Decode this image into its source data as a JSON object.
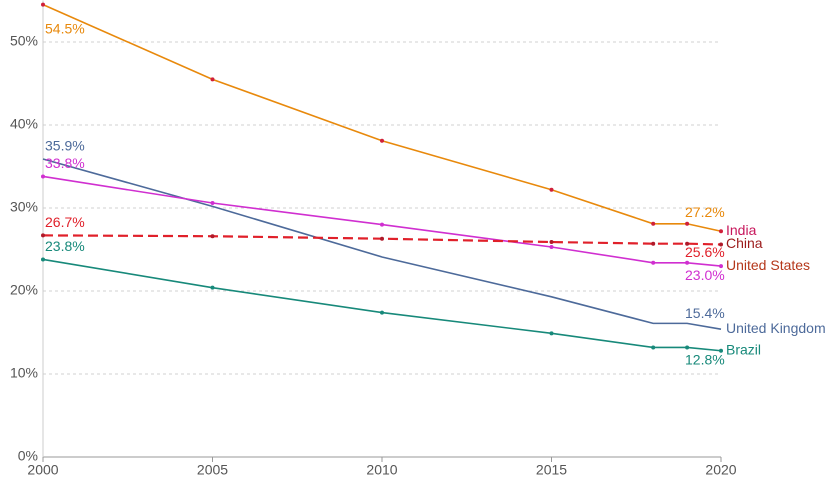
{
  "chart_data": {
    "type": "line",
    "x": [
      2000,
      2005,
      2010,
      2015,
      2018,
      2019,
      2020
    ],
    "xlim": [
      2000,
      2020
    ],
    "xticks": [
      2000,
      2005,
      2010,
      2015,
      2020
    ],
    "ylim": [
      0,
      55
    ],
    "yticks": [
      {
        "value": 0,
        "label": "0%"
      },
      {
        "value": 10,
        "label": "10%"
      },
      {
        "value": 20,
        "label": "20%"
      },
      {
        "value": 30,
        "label": "30%"
      },
      {
        "value": 40,
        "label": "40%"
      },
      {
        "value": 50,
        "label": "50%"
      }
    ],
    "grid": true,
    "series": [
      {
        "name": "India",
        "color": "#e8890c",
        "name_color": "#c7165b",
        "marker_color": "#d0203a",
        "markers": true,
        "dashed": false,
        "values": [
          54.5,
          45.5,
          38.1,
          32.2,
          28.1,
          28.1,
          27.2
        ],
        "value_labels": [
          "54.5%",
          null,
          null,
          null,
          null,
          null,
          "27.2%"
        ]
      },
      {
        "name": "United Kingdom",
        "color": "#4d6a9a",
        "name_color": "#4d6a9a",
        "marker_color": "#4d6a9a",
        "markers": false,
        "dashed": false,
        "values": [
          35.9,
          30.2,
          24.1,
          19.3,
          16.1,
          16.1,
          15.4
        ],
        "value_labels": [
          "35.9%",
          null,
          null,
          null,
          null,
          null,
          "15.4%"
        ]
      },
      {
        "name": "United States",
        "color": "#d02fd0",
        "name_color": "#b5371a",
        "marker_color": "#d02fd0",
        "markers": true,
        "dashed": false,
        "values": [
          33.8,
          30.6,
          28.0,
          25.3,
          23.4,
          23.4,
          23.0
        ],
        "value_labels": [
          "33.8%",
          null,
          null,
          null,
          null,
          null,
          "23.0%"
        ]
      },
      {
        "name": "China",
        "color": "#e0202a",
        "name_color": "#9b1a1a",
        "marker_color": "#b01a2a",
        "markers": true,
        "dashed": true,
        "values": [
          26.7,
          26.6,
          26.3,
          25.9,
          25.7,
          25.7,
          25.6
        ],
        "value_labels": [
          "26.7%",
          null,
          null,
          null,
          null,
          null,
          "25.6%"
        ]
      },
      {
        "name": "Brazil",
        "color": "#17897a",
        "name_color": "#17897a",
        "marker_color": "#17897a",
        "markers": true,
        "dashed": false,
        "values": [
          23.8,
          20.4,
          17.4,
          14.9,
          13.2,
          13.2,
          12.8
        ],
        "value_labels": [
          "23.8%",
          null,
          null,
          null,
          null,
          null,
          "12.8%"
        ]
      }
    ]
  }
}
